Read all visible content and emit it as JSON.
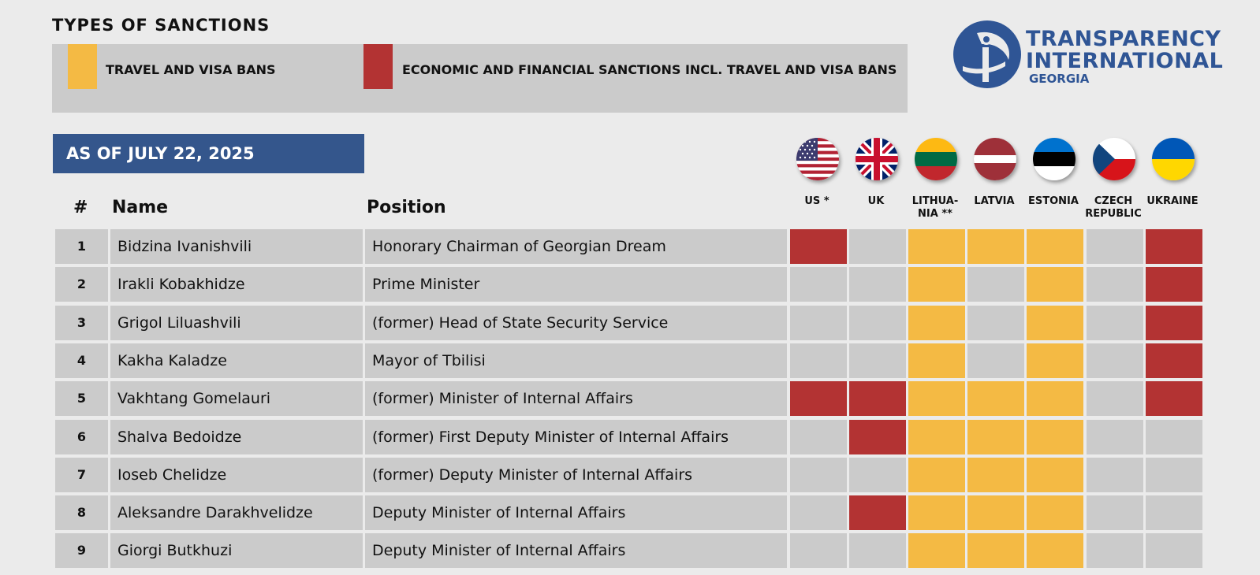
{
  "title": "TYPES OF SANCTIONS",
  "legend": [
    {
      "label": "TRAVEL AND VISA BANS",
      "color": "#f4ba44"
    },
    {
      "label": "ECONOMIC AND FINANCIAL SANCTIONS INCL. TRAVEL AND VISA BANS",
      "color": "#b33333"
    }
  ],
  "logo": {
    "line1": "TRANSPARENCY",
    "line2": "INTERNATIONAL",
    "line3": "GEORGIA"
  },
  "as_of": "AS OF JULY 22, 2025",
  "headers": {
    "num": "#",
    "name": "Name",
    "position": "Position"
  },
  "countries": [
    {
      "label": "US *",
      "flag": "us-flag-icon"
    },
    {
      "label": "UK",
      "flag": "uk-flag-icon"
    },
    {
      "label": "LITHUA- NIA **",
      "flag": "lithuania-flag-icon"
    },
    {
      "label": "LATVIA",
      "flag": "latvia-flag-icon"
    },
    {
      "label": "ESTONIA",
      "flag": "estonia-flag-icon"
    },
    {
      "label": "CZECH REPUBLIC",
      "flag": "czech-flag-icon"
    },
    {
      "label": "UKRAINE",
      "flag": "ukraine-flag-icon"
    }
  ],
  "colors": {
    "none": "#cbcbcb",
    "travel": "#f4ba44",
    "economic": "#b33333"
  },
  "rows": [
    {
      "num": "1",
      "name": "Bidzina Ivanishvili",
      "position": "Honorary Chairman of Georgian Dream",
      "sanctions": [
        "economic",
        "none",
        "travel",
        "travel",
        "travel",
        "none",
        "economic"
      ]
    },
    {
      "num": "2",
      "name": "Irakli Kobakhidze",
      "position": "Prime Minister",
      "sanctions": [
        "none",
        "none",
        "travel",
        "none",
        "travel",
        "none",
        "economic"
      ]
    },
    {
      "num": "3",
      "name": "Grigol Liluashvili",
      "position": "(former) Head of State Security Service",
      "sanctions": [
        "none",
        "none",
        "travel",
        "none",
        "travel",
        "none",
        "economic"
      ]
    },
    {
      "num": "4",
      "name": "Kakha Kaladze",
      "position": "Mayor of Tbilisi",
      "sanctions": [
        "none",
        "none",
        "travel",
        "none",
        "travel",
        "none",
        "economic"
      ]
    },
    {
      "num": "5",
      "name": "Vakhtang Gomelauri",
      "position": "(former) Minister of Internal Affairs",
      "sanctions": [
        "economic",
        "economic",
        "travel",
        "travel",
        "travel",
        "none",
        "economic"
      ]
    },
    {
      "num": "6",
      "name": "Shalva Bedoidze",
      "position": "(former) First Deputy Minister of Internal Affairs",
      "sanctions": [
        "none",
        "economic",
        "travel",
        "travel",
        "travel",
        "none",
        "none"
      ]
    },
    {
      "num": "7",
      "name": "Ioseb Chelidze",
      "position": "(former) Deputy Minister of Internal Affairs",
      "sanctions": [
        "none",
        "none",
        "travel",
        "travel",
        "travel",
        "none",
        "none"
      ]
    },
    {
      "num": "8",
      "name": "Aleksandre Darakhvelidze",
      "position": "Deputy Minister of Internal Affairs",
      "sanctions": [
        "none",
        "economic",
        "travel",
        "travel",
        "travel",
        "none",
        "none"
      ]
    },
    {
      "num": "9",
      "name": "Giorgi Butkhuzi",
      "position": "Deputy Minister of Internal Affairs",
      "sanctions": [
        "none",
        "none",
        "travel",
        "travel",
        "travel",
        "none",
        "none"
      ]
    }
  ]
}
